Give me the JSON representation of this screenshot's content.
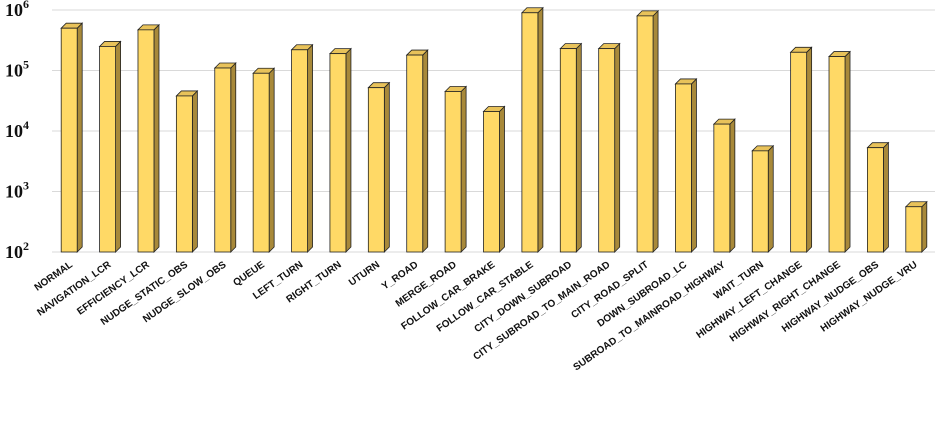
{
  "colors": {
    "bar_front": "#FFD966",
    "bar_side": "#A8893A",
    "bar_top": "#E8C25A",
    "bar_edge": "#222222",
    "grid": "#D9D9D9"
  },
  "chart_data": {
    "type": "bar",
    "yscale": "log",
    "ylim": [
      100,
      1000000
    ],
    "yticks": [
      {
        "value": 100,
        "base": "10",
        "exp": "2"
      },
      {
        "value": 1000,
        "base": "10",
        "exp": "3"
      },
      {
        "value": 10000,
        "base": "10",
        "exp": "4"
      },
      {
        "value": 100000,
        "base": "10",
        "exp": "5"
      },
      {
        "value": 1000000,
        "base": "10",
        "exp": "6"
      }
    ],
    "grid": true,
    "legend": "none",
    "title": "",
    "xlabel": "",
    "ylabel": "",
    "categories": [
      "NORMAL",
      "NAVIGATION_LCR",
      "EFFICIENCY_LCR",
      "NUDGE_STATIC_OBS",
      "NUDGE_SLOW_OBS",
      "QUEUE",
      "LEFT_TURN",
      "RIGHT_TURN",
      "UTURN",
      "Y_ROAD",
      "MERGE_ROAD",
      "FOLLOW_CAR_BRAKE",
      "FOLLOW_CAR_STABLE",
      "CITY_DOWN_SUBROAD",
      "CITY_SUBROAD_TO_MAIN_ROAD",
      "CITY_ROAD_SPLIT",
      "DOWN_SUBROAD_LC",
      "SUBROAD_TO_MAINROAD_HIGHWAY",
      "WAIT_TURN",
      "HIGHWAY_LEFT_CHANGE",
      "HIGHWAY_RIGHT_CHANGE",
      "HIGHWAY_NUDGE_OBS",
      "HIGHWAY_NUDGE_VRU"
    ],
    "values": [
      500000,
      250000,
      470000,
      38000,
      110000,
      90000,
      220000,
      190000,
      52000,
      180000,
      45000,
      21000,
      900000,
      230000,
      230000,
      800000,
      60000,
      13000,
      4700,
      200000,
      170000,
      5300,
      560
    ]
  }
}
